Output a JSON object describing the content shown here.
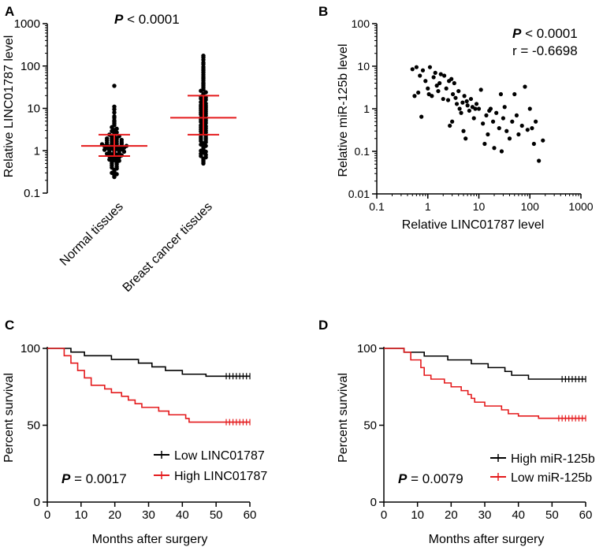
{
  "panels": [
    {
      "id": "A",
      "letter": "A",
      "type": "scatter",
      "title": "",
      "ylabel": "Relative LINC01787 level",
      "yscale": "log",
      "ylim": [
        0.1,
        1000
      ],
      "yticks": [
        0.1,
        1,
        10,
        100,
        1000
      ],
      "ytick_labels": [
        "0.1",
        "1",
        "10",
        "100",
        "1000"
      ],
      "categories": [
        "Normal tissues",
        "Breast cancer tissues"
      ],
      "annotation": {
        "prefix": "P",
        "text": " < 0.0001"
      },
      "groups": [
        {
          "name": "Normal tissues",
          "median": 1.3,
          "q1": 0.75,
          "q3": 2.4,
          "color": "#e41a1c",
          "values": [
            34,
            11,
            9.5,
            8,
            6.5,
            6,
            5.2,
            4.8,
            4.4,
            4,
            3.6,
            3.3,
            3.1,
            2.9,
            2.7,
            2.5,
            2.4,
            2.3,
            2.2,
            2.1,
            2.0,
            1.95,
            1.9,
            1.85,
            1.8,
            1.75,
            1.7,
            1.65,
            1.6,
            1.55,
            1.5,
            1.48,
            1.45,
            1.42,
            1.4,
            1.38,
            1.35,
            1.32,
            1.3,
            1.28,
            1.25,
            1.22,
            1.2,
            1.18,
            1.15,
            1.12,
            1.1,
            1.08,
            1.05,
            1.02,
            1.0,
            0.98,
            0.95,
            0.92,
            0.9,
            0.88,
            0.85,
            0.82,
            0.8,
            0.78,
            0.75,
            0.72,
            0.7,
            0.68,
            0.65,
            0.62,
            0.6,
            0.58,
            0.55,
            0.52,
            0.5,
            0.48,
            0.45,
            0.42,
            0.4,
            0.38,
            0.35,
            0.32,
            0.3,
            0.28,
            0.26,
            0.24
          ]
        },
        {
          "name": "Breast cancer tissues",
          "median": 6.0,
          "q1": 2.4,
          "q3": 20,
          "color": "#e41a1c",
          "values": [
            175,
            160,
            140,
            120,
            110,
            95,
            85,
            78,
            70,
            62,
            55,
            50,
            45,
            40,
            37,
            34,
            31,
            28,
            26,
            24,
            22,
            20,
            19,
            18,
            17,
            16,
            15,
            14,
            13,
            12,
            11.5,
            11,
            10.5,
            10,
            9.5,
            9,
            8.5,
            8,
            7.6,
            7.2,
            6.8,
            6.4,
            6.0,
            5.7,
            5.4,
            5.1,
            4.8,
            4.5,
            4.2,
            4.0,
            3.8,
            3.6,
            3.4,
            3.2,
            3.0,
            2.85,
            2.7,
            2.55,
            2.4,
            2.25,
            2.1,
            2.0,
            1.9,
            1.8,
            1.7,
            1.6,
            1.5,
            1.4,
            1.3,
            1.2,
            1.1,
            1.0,
            0.95,
            0.9,
            0.85,
            0.8,
            0.75,
            0.7,
            0.65,
            0.6,
            0.55,
            0.5
          ]
        }
      ]
    },
    {
      "id": "B",
      "letter": "B",
      "type": "scatter",
      "title": "",
      "xlabel": "Relative LINC01787 level",
      "ylabel": "Relative miR-125b level",
      "xscale": "log",
      "yscale": "log",
      "xlim": [
        0.1,
        1000
      ],
      "ylim": [
        0.01,
        100
      ],
      "xticks": [
        0.1,
        1,
        10,
        100,
        1000
      ],
      "xtick_labels": [
        "0.1",
        "1",
        "10",
        "100",
        "1000"
      ],
      "yticks": [
        0.01,
        0.1,
        1,
        10,
        100
      ],
      "ytick_labels": [
        "0.01",
        "0.1",
        "1",
        "10",
        "100"
      ],
      "annotation": {
        "prefix": "P",
        "text": " < 0.0001",
        "r_text": "r = -0.6698"
      },
      "points": [
        {
          "x": 0.5,
          "y": 8.5
        },
        {
          "x": 0.55,
          "y": 2.0
        },
        {
          "x": 0.6,
          "y": 9.5
        },
        {
          "x": 0.65,
          "y": 2.4
        },
        {
          "x": 0.7,
          "y": 6.0
        },
        {
          "x": 0.75,
          "y": 0.65
        },
        {
          "x": 0.8,
          "y": 8.0
        },
        {
          "x": 0.9,
          "y": 4.5
        },
        {
          "x": 1.0,
          "y": 3.0
        },
        {
          "x": 1.05,
          "y": 2.2
        },
        {
          "x": 1.1,
          "y": 9.5
        },
        {
          "x": 1.2,
          "y": 2.0
        },
        {
          "x": 1.3,
          "y": 5.5
        },
        {
          "x": 1.4,
          "y": 7.0
        },
        {
          "x": 1.5,
          "y": 3.5
        },
        {
          "x": 1.6,
          "y": 2.6
        },
        {
          "x": 1.7,
          "y": 4.0
        },
        {
          "x": 1.8,
          "y": 6.5
        },
        {
          "x": 2.0,
          "y": 1.7
        },
        {
          "x": 2.1,
          "y": 6.0
        },
        {
          "x": 2.3,
          "y": 3.0
        },
        {
          "x": 2.5,
          "y": 1.6
        },
        {
          "x": 2.6,
          "y": 4.5
        },
        {
          "x": 2.7,
          "y": 0.4
        },
        {
          "x": 2.9,
          "y": 5.0
        },
        {
          "x": 3.0,
          "y": 0.5
        },
        {
          "x": 3.1,
          "y": 2.2
        },
        {
          "x": 3.3,
          "y": 4.0
        },
        {
          "x": 3.5,
          "y": 1.8
        },
        {
          "x": 3.7,
          "y": 1.3
        },
        {
          "x": 4.0,
          "y": 2.6
        },
        {
          "x": 4.2,
          "y": 1.0
        },
        {
          "x": 4.5,
          "y": 0.8
        },
        {
          "x": 4.8,
          "y": 1.4
        },
        {
          "x": 5.0,
          "y": 0.3
        },
        {
          "x": 5.2,
          "y": 2.0
        },
        {
          "x": 5.5,
          "y": 0.2
        },
        {
          "x": 5.8,
          "y": 1.5
        },
        {
          "x": 6.0,
          "y": 1.2
        },
        {
          "x": 6.5,
          "y": 0.9
        },
        {
          "x": 7.0,
          "y": 1.7
        },
        {
          "x": 7.5,
          "y": 1.1
        },
        {
          "x": 8.0,
          "y": 0.6
        },
        {
          "x": 8.5,
          "y": 1.0
        },
        {
          "x": 9.0,
          "y": 1.3
        },
        {
          "x": 10.0,
          "y": 1.0
        },
        {
          "x": 11.0,
          "y": 2.8
        },
        {
          "x": 12.0,
          "y": 0.45
        },
        {
          "x": 13.0,
          "y": 0.15
        },
        {
          "x": 14.0,
          "y": 0.7
        },
        {
          "x": 15.0,
          "y": 0.25
        },
        {
          "x": 16.0,
          "y": 0.9
        },
        {
          "x": 17.0,
          "y": 1.0
        },
        {
          "x": 19.0,
          "y": 0.5
        },
        {
          "x": 20.0,
          "y": 0.12
        },
        {
          "x": 22.0,
          "y": 0.8
        },
        {
          "x": 25.0,
          "y": 0.35
        },
        {
          "x": 27.0,
          "y": 2.2
        },
        {
          "x": 28.0,
          "y": 0.1
        },
        {
          "x": 30.0,
          "y": 0.6
        },
        {
          "x": 32.0,
          "y": 1.1
        },
        {
          "x": 35.0,
          "y": 0.3
        },
        {
          "x": 40.0,
          "y": 0.2
        },
        {
          "x": 45.0,
          "y": 0.5
        },
        {
          "x": 50.0,
          "y": 2.2
        },
        {
          "x": 55.0,
          "y": 0.7
        },
        {
          "x": 60.0,
          "y": 0.25
        },
        {
          "x": 70.0,
          "y": 0.4
        },
        {
          "x": 80.0,
          "y": 3.3
        },
        {
          "x": 90.0,
          "y": 0.32
        },
        {
          "x": 100.0,
          "y": 1.0
        },
        {
          "x": 110.0,
          "y": 0.35
        },
        {
          "x": 120.0,
          "y": 0.15
        },
        {
          "x": 130.0,
          "y": 0.5
        },
        {
          "x": 150.0,
          "y": 0.06
        },
        {
          "x": 180.0,
          "y": 0.18
        }
      ]
    },
    {
      "id": "C",
      "letter": "C",
      "type": "line",
      "title": "",
      "xlabel": "Months after surgery",
      "ylabel": "Percent survival",
      "xlim": [
        0,
        60
      ],
      "ylim": [
        0,
        100
      ],
      "xticks": [
        0,
        10,
        20,
        30,
        40,
        50,
        60
      ],
      "yticks": [
        0,
        50,
        100
      ],
      "annotation": {
        "prefix": "P",
        "text": " = 0.0017"
      },
      "series": [
        {
          "name": "Low LINC01787",
          "color": "#000000",
          "steps": [
            [
              0,
              100
            ],
            [
              7,
              97.6
            ],
            [
              11,
              95.2
            ],
            [
              19,
              92.8
            ],
            [
              27,
              90.4
            ],
            [
              31,
              88
            ],
            [
              35,
              85.6
            ],
            [
              40,
              83.2
            ],
            [
              47,
              81.9
            ],
            [
              60,
              81.9
            ]
          ],
          "censored": [
            53,
            54,
            55,
            56,
            57,
            58,
            59,
            60
          ],
          "censor_y": 81.9
        },
        {
          "name": "High LINC01787",
          "color": "#e41a1c",
          "steps": [
            [
              0,
              100
            ],
            [
              5,
              95.2
            ],
            [
              7,
              90.4
            ],
            [
              9,
              85.6
            ],
            [
              11,
              80.8
            ],
            [
              13,
              76
            ],
            [
              17,
              73.6
            ],
            [
              19,
              71.2
            ],
            [
              22,
              68.8
            ],
            [
              24,
              66.4
            ],
            [
              26,
              64
            ],
            [
              28,
              61.6
            ],
            [
              33,
              59.2
            ],
            [
              36,
              56.8
            ],
            [
              41,
              54.4
            ],
            [
              42,
              52
            ],
            [
              60,
              52
            ]
          ],
          "censored": [
            53,
            54,
            55,
            56,
            57,
            58,
            59,
            60
          ],
          "censor_y": 52
        }
      ]
    },
    {
      "id": "D",
      "letter": "D",
      "type": "line",
      "title": "",
      "xlabel": "Months after surgery",
      "ylabel": "Percent survival",
      "xlim": [
        0,
        60
      ],
      "ylim": [
        0,
        100
      ],
      "xticks": [
        0,
        10,
        20,
        30,
        40,
        50,
        60
      ],
      "yticks": [
        0,
        50,
        100
      ],
      "annotation": {
        "prefix": "P",
        "text": " = 0.0079"
      },
      "series": [
        {
          "name": "High miR-125b",
          "color": "#000000",
          "steps": [
            [
              0,
              100
            ],
            [
              6,
              97.5
            ],
            [
              12,
              95
            ],
            [
              19,
              92.5
            ],
            [
              26,
              90
            ],
            [
              31,
              87.5
            ],
            [
              36,
              85
            ],
            [
              38,
              82.5
            ],
            [
              43,
              80
            ],
            [
              60,
              80
            ]
          ],
          "censored": [
            53,
            54,
            55,
            56,
            57,
            58,
            59,
            60
          ],
          "censor_y": 80
        },
        {
          "name": "Low miR-125b",
          "color": "#e41a1c",
          "steps": [
            [
              0,
              100
            ],
            [
              6,
              97.5
            ],
            [
              8,
              92.5
            ],
            [
              11,
              87.5
            ],
            [
              12,
              82.5
            ],
            [
              14,
              80
            ],
            [
              18,
              77.5
            ],
            [
              20,
              75
            ],
            [
              23,
              72.5
            ],
            [
              25,
              70
            ],
            [
              26,
              67.5
            ],
            [
              27,
              65
            ],
            [
              30,
              62.5
            ],
            [
              35,
              60
            ],
            [
              37,
              57.5
            ],
            [
              40,
              56
            ],
            [
              46,
              54.5
            ],
            [
              60,
              54.5
            ]
          ],
          "censored": [
            52,
            53,
            54,
            55,
            56,
            57,
            58,
            59,
            60
          ],
          "censor_y": 54.5
        }
      ]
    }
  ]
}
